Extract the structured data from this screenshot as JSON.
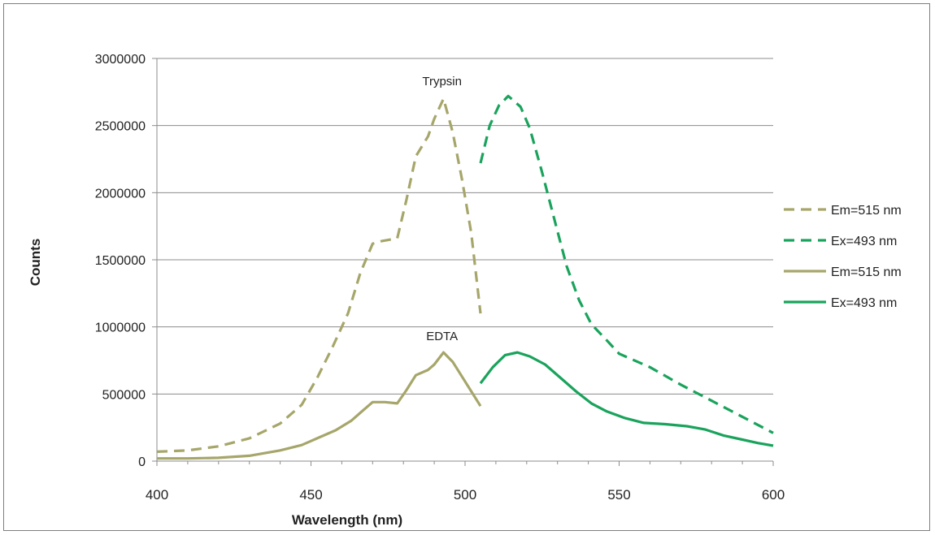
{
  "chart_data": {
    "type": "line",
    "xlabel": "Wavelength (nm)",
    "ylabel": "Counts",
    "xlim": [
      400,
      600
    ],
    "ylim": [
      0,
      3000000
    ],
    "x_ticks": [
      "400",
      "450",
      "500",
      "550",
      "600"
    ],
    "y_ticks": [
      "0",
      "500000",
      "1000000",
      "1500000",
      "2000000",
      "2500000",
      "3000000"
    ],
    "grid": "horizontal",
    "legend_position": "right",
    "annotations": [
      {
        "text": "Trypsin",
        "x": 492,
        "y": 2800000
      },
      {
        "text": "EDTA",
        "x": 492,
        "y": 900000
      }
    ],
    "series": [
      {
        "name": "Em=515 nm",
        "color": "#a6a66b",
        "dash": true,
        "points": [
          [
            400,
            70000
          ],
          [
            410,
            80000
          ],
          [
            420,
            110000
          ],
          [
            430,
            170000
          ],
          [
            440,
            280000
          ],
          [
            447,
            420000
          ],
          [
            452,
            620000
          ],
          [
            457,
            850000
          ],
          [
            462,
            1100000
          ],
          [
            466,
            1400000
          ],
          [
            470,
            1620000
          ],
          [
            473,
            1640000
          ],
          [
            478,
            1660000
          ],
          [
            481,
            1950000
          ],
          [
            484,
            2270000
          ],
          [
            488,
            2420000
          ],
          [
            490,
            2550000
          ],
          [
            493,
            2700000
          ],
          [
            496,
            2450000
          ],
          [
            499,
            2100000
          ],
          [
            502,
            1700000
          ],
          [
            505,
            1100000
          ]
        ]
      },
      {
        "name": "Ex=493 nm",
        "color": "#1aa35c",
        "dash": true,
        "points": [
          [
            505,
            2220000
          ],
          [
            508,
            2500000
          ],
          [
            511,
            2650000
          ],
          [
            514,
            2720000
          ],
          [
            518,
            2640000
          ],
          [
            521,
            2480000
          ],
          [
            525,
            2150000
          ],
          [
            529,
            1800000
          ],
          [
            533,
            1450000
          ],
          [
            537,
            1200000
          ],
          [
            541,
            1020000
          ],
          [
            546,
            900000
          ],
          [
            550,
            800000
          ],
          [
            560,
            700000
          ],
          [
            570,
            570000
          ],
          [
            580,
            450000
          ],
          [
            590,
            330000
          ],
          [
            600,
            210000
          ]
        ]
      },
      {
        "name": "Em=515 nm",
        "color": "#a6a66b",
        "dash": false,
        "points": [
          [
            400,
            20000
          ],
          [
            410,
            20000
          ],
          [
            420,
            25000
          ],
          [
            430,
            40000
          ],
          [
            440,
            80000
          ],
          [
            447,
            120000
          ],
          [
            452,
            170000
          ],
          [
            458,
            230000
          ],
          [
            463,
            300000
          ],
          [
            466,
            360000
          ],
          [
            470,
            440000
          ],
          [
            474,
            440000
          ],
          [
            478,
            430000
          ],
          [
            481,
            530000
          ],
          [
            484,
            640000
          ],
          [
            488,
            680000
          ],
          [
            490,
            720000
          ],
          [
            493,
            810000
          ],
          [
            496,
            740000
          ],
          [
            499,
            630000
          ],
          [
            502,
            520000
          ],
          [
            505,
            410000
          ]
        ]
      },
      {
        "name": "Ex=493 nm",
        "color": "#1aa35c",
        "dash": false,
        "points": [
          [
            505,
            580000
          ],
          [
            509,
            700000
          ],
          [
            513,
            790000
          ],
          [
            517,
            810000
          ],
          [
            521,
            780000
          ],
          [
            526,
            720000
          ],
          [
            531,
            620000
          ],
          [
            536,
            520000
          ],
          [
            541,
            430000
          ],
          [
            546,
            370000
          ],
          [
            552,
            320000
          ],
          [
            558,
            285000
          ],
          [
            565,
            275000
          ],
          [
            572,
            260000
          ],
          [
            578,
            235000
          ],
          [
            584,
            190000
          ],
          [
            590,
            160000
          ],
          [
            595,
            135000
          ],
          [
            600,
            115000
          ]
        ]
      }
    ]
  }
}
